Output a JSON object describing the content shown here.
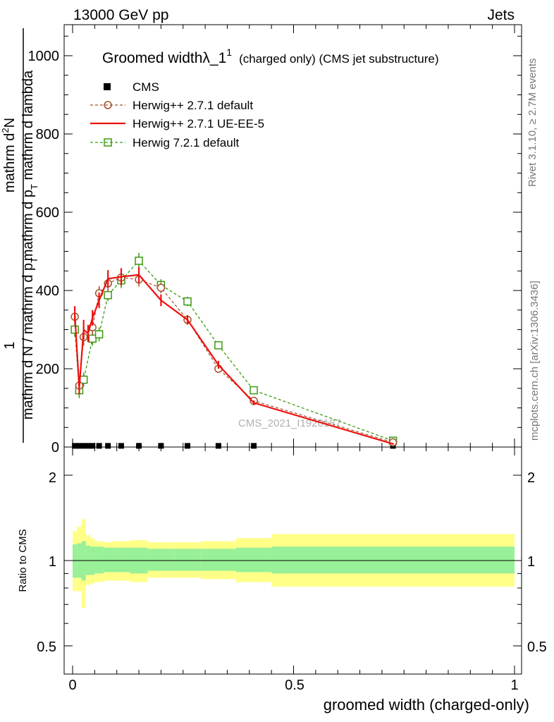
{
  "header": {
    "left": "13000 GeV pp",
    "right": "Jets"
  },
  "side_labels": {
    "rivet": "Rivet 3.1.10, ≥ 2.7M events",
    "mcplots": "mcplots.cern.ch [arXiv:1306.3436]"
  },
  "watermark": "CMS_2021_I1920187",
  "upper_panel": {
    "title_main": "Groomed widthλ_1",
    "title_sup": "1",
    "title_note": "(charged only) (CMS jet substructure)",
    "ylabel_num": "1",
    "ylabel_num_line1": "mathrm d",
    "ylabel_num_line1_sup": "2",
    "ylabel_num_line1_tail": "N",
    "ylabel_num_line2": "mathrm d p",
    "ylabel_num_line2_sub": "T",
    "ylabel_num_line2_tail": " mathrm d lambda",
    "ylabel_den": "mathrm d N / mathrm d p",
    "ylabel_den_sub": "T",
    "yticks": [
      "0",
      "200",
      "400",
      "600",
      "800",
      "1000"
    ]
  },
  "lower_panel": {
    "ylabel": "Ratio to CMS",
    "yticks_left": [
      "0.5",
      "1",
      "2"
    ],
    "yticks_right": [
      "0.5",
      "1",
      "2"
    ],
    "xticks": [
      "0",
      "0.5",
      "1"
    ],
    "xlabel": "groomed width (charged-only)"
  },
  "legend": [
    {
      "label": "CMS",
      "color": "#000000",
      "marker": "square-filled",
      "line": "none"
    },
    {
      "label": "Herwig++ 2.7.1 default",
      "color": "#a0522d",
      "marker": "circle-open",
      "line": "dashed"
    },
    {
      "label": "Herwig++ 2.7.1 UE-EE-5",
      "color": "#ee1111",
      "marker": "none",
      "line": "solid"
    },
    {
      "label": "Herwig 7.2.1 default",
      "color": "#3a9a10",
      "marker": "square-open",
      "line": "dashed"
    }
  ],
  "chart_data": {
    "type": "line",
    "x_range": [
      -0.02,
      1.02
    ],
    "ylim": [
      0,
      1080
    ],
    "ratio_ylim_log": [
      0.4,
      2.5
    ],
    "bin_edges": [
      0,
      0.01,
      0.02,
      0.03,
      0.04,
      0.05,
      0.07,
      0.09,
      0.13,
      0.17,
      0.23,
      0.29,
      0.37,
      0.45,
      1.0
    ],
    "bin_centers": [
      0.005,
      0.015,
      0.025,
      0.035,
      0.045,
      0.06,
      0.08,
      0.11,
      0.15,
      0.2,
      0.26,
      0.33,
      0.41,
      0.725
    ],
    "series": [
      {
        "name": "CMS",
        "color": "#000000",
        "values": [
          3,
          3,
          3,
          3,
          3,
          3,
          3,
          3,
          3,
          3,
          3,
          3,
          3,
          3
        ]
      },
      {
        "name": "Herwig++ 2.7.1 default",
        "color": "#a0522d",
        "values": [
          333,
          157,
          281,
          306,
          393,
          418,
          433,
          428,
          407,
          325,
          200,
          118,
          12
        ],
        "errors": [
          18,
          14,
          22,
          20,
          18,
          22,
          20,
          18,
          14,
          10,
          8,
          5,
          2
        ],
        "x": [
          0.005,
          0.015,
          0.025,
          0.045,
          0.06,
          0.08,
          0.11,
          0.15,
          0.2,
          0.26,
          0.33,
          0.41,
          0.725
        ]
      },
      {
        "name": "Herwig++ 2.7.1 UE-EE-5",
        "color": "#ee1111",
        "x": [
          0.005,
          0.015,
          0.025,
          0.035,
          0.045,
          0.06,
          0.08,
          0.11,
          0.15,
          0.2,
          0.26,
          0.33,
          0.41,
          0.725
        ],
        "values": [
          340,
          150,
          300,
          290,
          330,
          375,
          430,
          435,
          440,
          375,
          325,
          210,
          113,
          8
        ],
        "errors": [
          20,
          15,
          25,
          22,
          20,
          20,
          22,
          22,
          20,
          15,
          12,
          10,
          6,
          2
        ]
      },
      {
        "name": "Herwig 7.2.1 default",
        "color": "#3a9a10",
        "x": [
          0.005,
          0.015,
          0.025,
          0.045,
          0.06,
          0.08,
          0.11,
          0.15,
          0.2,
          0.26,
          0.33,
          0.41,
          0.725
        ],
        "values": [
          300,
          145,
          172,
          277,
          288,
          388,
          426,
          476,
          414,
          372,
          260,
          145,
          16
        ],
        "errors": [
          18,
          20,
          18,
          18,
          18,
          15,
          20,
          20,
          15,
          12,
          8,
          5,
          2
        ]
      }
    ],
    "ratio_band_inner": [
      [
        0.87,
        1.14
      ],
      [
        0.87,
        1.15
      ],
      [
        0.85,
        1.17
      ],
      [
        0.89,
        1.13
      ],
      [
        0.89,
        1.12
      ],
      [
        0.9,
        1.12
      ],
      [
        0.91,
        1.11
      ],
      [
        0.91,
        1.11
      ],
      [
        0.9,
        1.11
      ],
      [
        0.92,
        1.1
      ],
      [
        0.92,
        1.1
      ],
      [
        0.92,
        1.1
      ],
      [
        0.91,
        1.11
      ],
      [
        0.9,
        1.12
      ],
      [
        0.9,
        1.13
      ]
    ],
    "ratio_band_outer": [
      [
        0.78,
        1.27
      ],
      [
        0.78,
        1.32
      ],
      [
        0.68,
        1.4
      ],
      [
        0.82,
        1.23
      ],
      [
        0.83,
        1.2
      ],
      [
        0.84,
        1.17
      ],
      [
        0.85,
        1.16
      ],
      [
        0.85,
        1.17
      ],
      [
        0.84,
        1.18
      ],
      [
        0.87,
        1.16
      ],
      [
        0.87,
        1.16
      ],
      [
        0.86,
        1.17
      ],
      [
        0.84,
        1.2
      ],
      [
        0.81,
        1.24
      ],
      [
        0.8,
        1.27
      ]
    ]
  }
}
